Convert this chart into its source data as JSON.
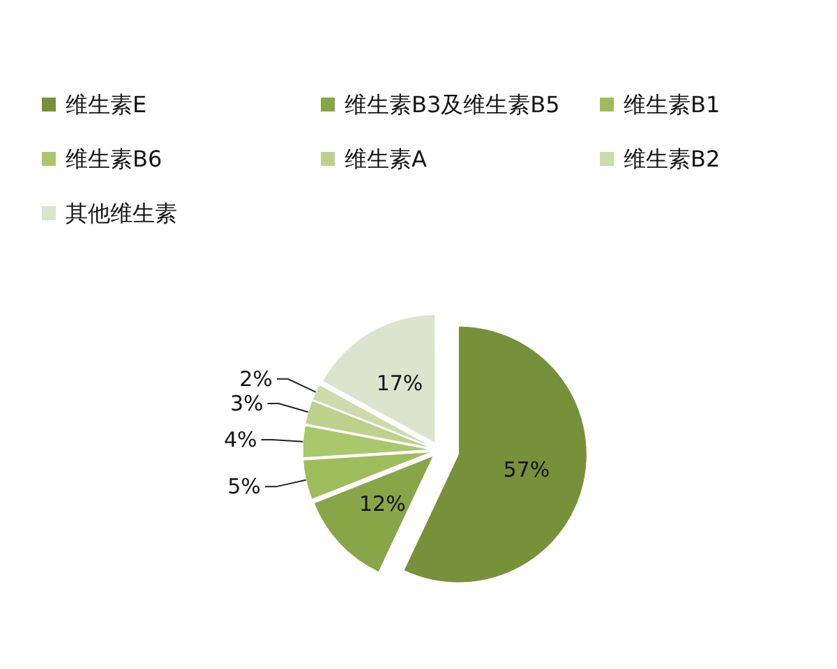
{
  "chart_data": {
    "type": "pie",
    "categories": [
      "维生素E",
      "维生素B3及维生素B5",
      "维生素B1",
      "维生素B6",
      "维生素A",
      "维生素B2",
      "其他维生素"
    ],
    "values": [
      57,
      12,
      5,
      4,
      3,
      2,
      17
    ],
    "colors": [
      "#77913a",
      "#88a648",
      "#9fbc5c",
      "#aac76c",
      "#bcd18c",
      "#cddbab",
      "#dce4cd"
    ],
    "value_labels": [
      "57%",
      "12%",
      "5%",
      "4%",
      "3%",
      "2%",
      "17%"
    ],
    "legend": "top"
  }
}
